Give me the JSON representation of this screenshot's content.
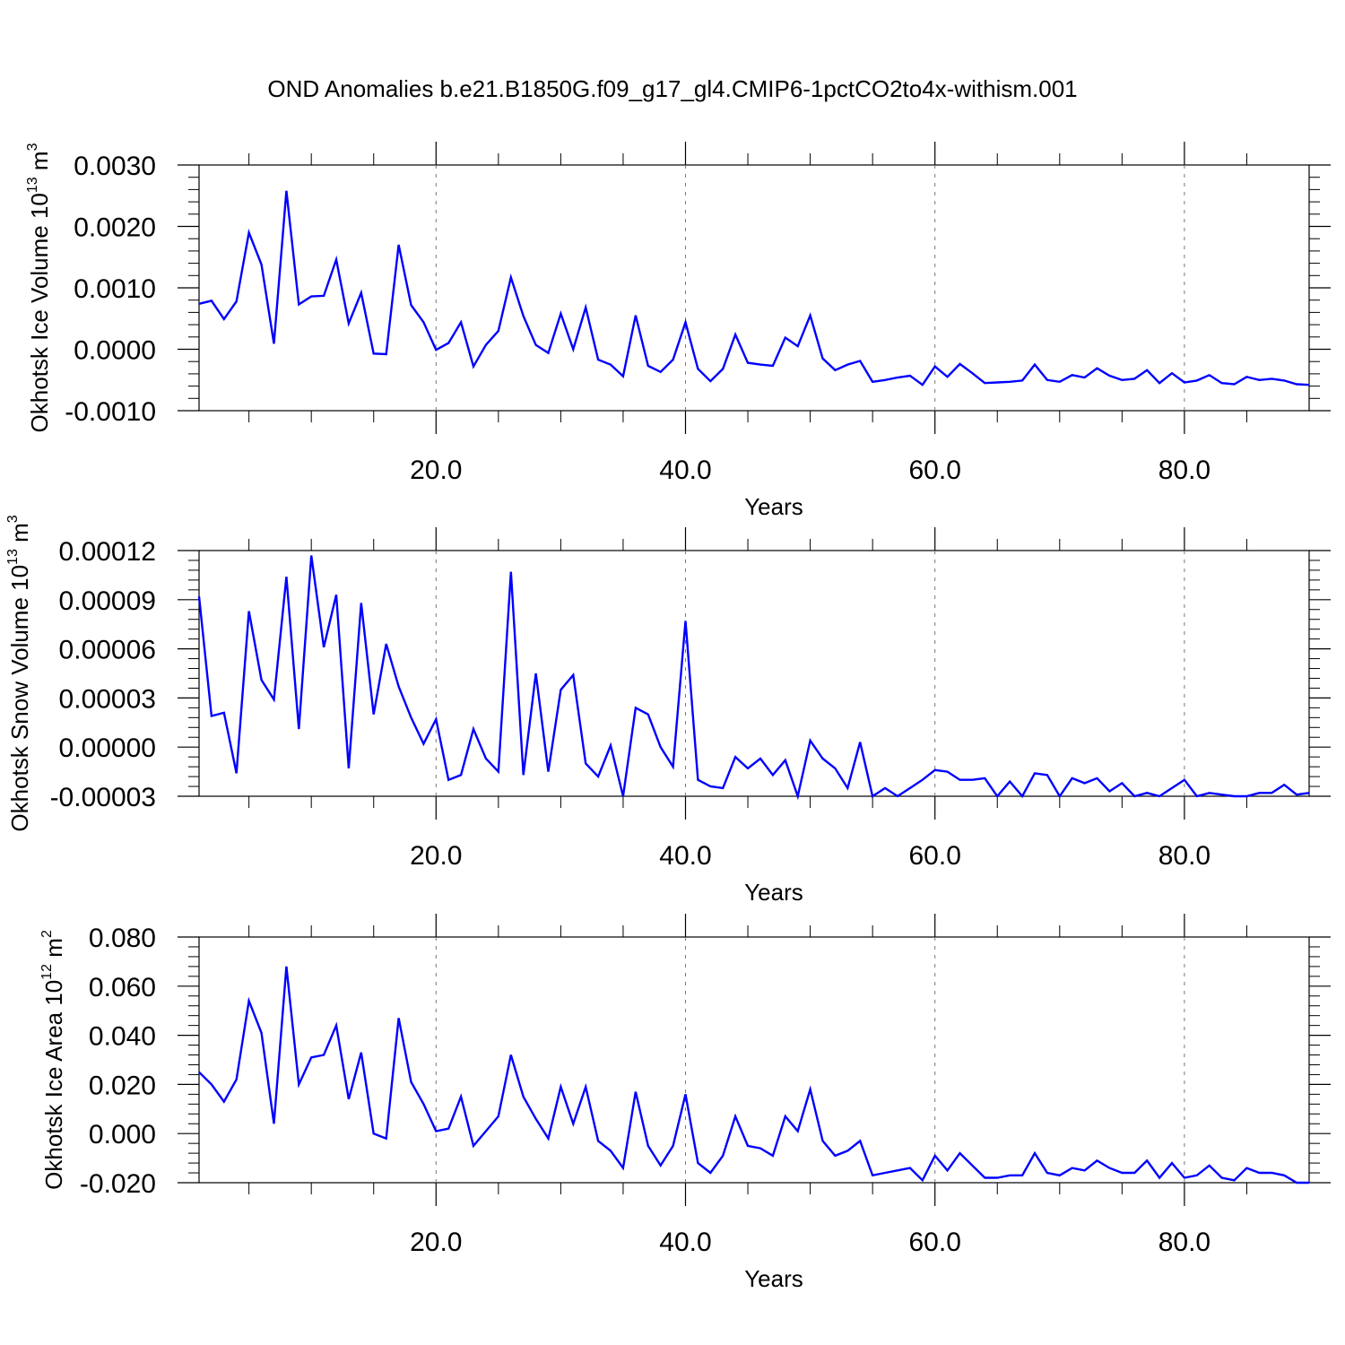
{
  "title": "OND Anomalies b.e21.B1850G.f09_g17_gl4.CMIP6-1pctCO2to4x-withism.001",
  "line_color": "#0000ff",
  "grid_color": "#777777",
  "chart_data": [
    {
      "type": "line",
      "xlabel": "Years",
      "ylabel": "Okhotsk Ice Volume 10",
      "ylabel_sup": "13",
      "ylabel_unit": "m",
      "ylabel_unit_sup": "3",
      "xlim": [
        1,
        90
      ],
      "ylim": [
        -0.001,
        0.003
      ],
      "xticks": [
        20,
        40,
        60,
        80
      ],
      "xtick_labels": [
        "20.0",
        "40.0",
        "60.0",
        "80.0"
      ],
      "yticks": [
        -0.001,
        0.0,
        0.001,
        0.002,
        0.003
      ],
      "ytick_labels": [
        "-0.0010",
        "0.0000",
        "0.0010",
        "0.0020",
        "0.0030"
      ],
      "grid": "vertical dashed at x ticks",
      "x": [
        1,
        2,
        3,
        4,
        5,
        6,
        7,
        8,
        9,
        10,
        11,
        12,
        13,
        14,
        15,
        16,
        17,
        18,
        19,
        20,
        21,
        22,
        23,
        24,
        25,
        26,
        27,
        28,
        29,
        30,
        31,
        32,
        33,
        34,
        35,
        36,
        37,
        38,
        39,
        40,
        41,
        42,
        43,
        44,
        45,
        46,
        47,
        48,
        49,
        50,
        51,
        52,
        53,
        54,
        55,
        56,
        57,
        58,
        59,
        60,
        61,
        62,
        63,
        64,
        65,
        66,
        67,
        68,
        69,
        70,
        71,
        72,
        73,
        74,
        75,
        76,
        77,
        78,
        79,
        80,
        81,
        82,
        83,
        84,
        85,
        86,
        87,
        88,
        89,
        90
      ],
      "y": [
        0.00074,
        0.00079,
        0.00049,
        0.00078,
        0.0019,
        0.00138,
        9e-05,
        0.00258,
        0.00073,
        0.00086,
        0.00087,
        0.00146,
        0.00042,
        0.00092,
        -7e-05,
        -8e-05,
        0.0017,
        0.00072,
        0.00044,
        -1e-05,
        0.0001,
        0.00044,
        -0.00028,
        7e-05,
        0.0003,
        0.00117,
        0.00054,
        7e-05,
        -6e-05,
        0.00058,
        0.0,
        0.00068,
        -0.00017,
        -0.00025,
        -0.00044,
        0.00055,
        -0.00027,
        -0.00037,
        -0.00017,
        0.00044,
        -0.00032,
        -0.00052,
        -0.00032,
        0.00024,
        -0.00022,
        -0.00025,
        -0.00027,
        0.00019,
        5e-05,
        0.00055,
        -0.00015,
        -0.00034,
        -0.00025,
        -0.00019,
        -0.00053,
        -0.0005,
        -0.00046,
        -0.00043,
        -0.00058,
        -0.00028,
        -0.00045,
        -0.00024,
        -0.00039,
        -0.00055,
        -0.00054,
        -0.00053,
        -0.00051,
        -0.00025,
        -0.0005,
        -0.00053,
        -0.00042,
        -0.00046,
        -0.00031,
        -0.00043,
        -0.0005,
        -0.00048,
        -0.00034,
        -0.00055,
        -0.00039,
        -0.00054,
        -0.00051,
        -0.00042,
        -0.00055,
        -0.00057,
        -0.00045,
        -0.0005,
        -0.00048,
        -0.00051,
        -0.00057,
        -0.00058
      ]
    },
    {
      "type": "line",
      "xlabel": "Years",
      "ylabel": "Okhotsk Snow Volume 10",
      "ylabel_sup": "13",
      "ylabel_unit": "m",
      "ylabel_unit_sup": "3",
      "xlim": [
        1,
        90
      ],
      "ylim": [
        -3e-05,
        0.00012
      ],
      "xticks": [
        20,
        40,
        60,
        80
      ],
      "xtick_labels": [
        "20.0",
        "40.0",
        "60.0",
        "80.0"
      ],
      "yticks": [
        -3e-05,
        0.0,
        3e-05,
        6e-05,
        9e-05,
        0.00012
      ],
      "ytick_labels": [
        "-0.00003",
        "0.00000",
        "0.00003",
        "0.00006",
        "0.00009",
        "0.00012"
      ],
      "grid": "vertical dashed at x ticks",
      "x": [
        1,
        2,
        3,
        4,
        5,
        6,
        7,
        8,
        9,
        10,
        11,
        12,
        13,
        14,
        15,
        16,
        17,
        18,
        19,
        20,
        21,
        22,
        23,
        24,
        25,
        26,
        27,
        28,
        29,
        30,
        31,
        32,
        33,
        34,
        35,
        36,
        37,
        38,
        39,
        40,
        41,
        42,
        43,
        44,
        45,
        46,
        47,
        48,
        49,
        50,
        51,
        52,
        53,
        54,
        55,
        56,
        57,
        58,
        59,
        60,
        61,
        62,
        63,
        64,
        65,
        66,
        67,
        68,
        69,
        70,
        71,
        72,
        73,
        74,
        75,
        76,
        77,
        78,
        79,
        80,
        81,
        82,
        83,
        84,
        85,
        86,
        87,
        88,
        89,
        90
      ],
      "y": [
        9.2e-05,
        1.9e-05,
        2.1e-05,
        -1.6e-05,
        8.3e-05,
        4.1e-05,
        2.9e-05,
        0.000104,
        1.1e-05,
        0.000117,
        6.1e-05,
        9.3e-05,
        -1.3e-05,
        8.8e-05,
        2e-05,
        6.3e-05,
        3.7e-05,
        1.8e-05,
        2e-06,
        1.7e-05,
        -2e-05,
        -1.7e-05,
        1.1e-05,
        -7e-06,
        -1.5e-05,
        0.000107,
        -1.7e-05,
        4.5e-05,
        -1.5e-05,
        3.5e-05,
        4.4e-05,
        -1e-05,
        -1.8e-05,
        1e-06,
        -3e-05,
        2.4e-05,
        2e-05,
        0.0,
        -1.2e-05,
        7.7e-05,
        -2e-05,
        -2.4e-05,
        -2.5e-05,
        -6e-06,
        -1.3e-05,
        -7e-06,
        -1.7e-05,
        -8e-06,
        -3e-05,
        4e-06,
        -7e-06,
        -1.3e-05,
        -2.5e-05,
        3e-06,
        -3e-05,
        -2.5e-05,
        -3e-05,
        -2.5e-05,
        -2e-05,
        -1.4e-05,
        -1.5e-05,
        -2e-05,
        -2e-05,
        -1.9e-05,
        -3e-05,
        -2.1e-05,
        -3e-05,
        -1.6e-05,
        -1.7e-05,
        -3e-05,
        -1.9e-05,
        -2.2e-05,
        -1.9e-05,
        -2.7e-05,
        -2.2e-05,
        -3e-05,
        -2.8e-05,
        -3e-05,
        -2.5e-05,
        -2e-05,
        -3e-05,
        -2.8e-05,
        -2.9e-05,
        -3e-05,
        -3e-05,
        -2.8e-05,
        -2.8e-05,
        -2.3e-05,
        -2.9e-05,
        -2.8e-05
      ]
    },
    {
      "type": "line",
      "xlabel": "Years",
      "ylabel": "Okhotsk Ice Area 10",
      "ylabel_sup": "12",
      "ylabel_unit": "m",
      "ylabel_unit_sup": "2",
      "xlim": [
        1,
        90
      ],
      "ylim": [
        -0.02,
        0.08
      ],
      "xticks": [
        20,
        40,
        60,
        80
      ],
      "xtick_labels": [
        "20.0",
        "40.0",
        "60.0",
        "80.0"
      ],
      "yticks": [
        -0.02,
        0.0,
        0.02,
        0.04,
        0.06,
        0.08
      ],
      "ytick_labels": [
        "-0.020",
        "0.000",
        "0.020",
        "0.040",
        "0.060",
        "0.080"
      ],
      "grid": "vertical dashed at x ticks",
      "x": [
        1,
        2,
        3,
        4,
        5,
        6,
        7,
        8,
        9,
        10,
        11,
        12,
        13,
        14,
        15,
        16,
        17,
        18,
        19,
        20,
        21,
        22,
        23,
        24,
        25,
        26,
        27,
        28,
        29,
        30,
        31,
        32,
        33,
        34,
        35,
        36,
        37,
        38,
        39,
        40,
        41,
        42,
        43,
        44,
        45,
        46,
        47,
        48,
        49,
        50,
        51,
        52,
        53,
        54,
        55,
        56,
        57,
        58,
        59,
        60,
        61,
        62,
        63,
        64,
        65,
        66,
        67,
        68,
        69,
        70,
        71,
        72,
        73,
        74,
        75,
        76,
        77,
        78,
        79,
        80,
        81,
        82,
        83,
        84,
        85,
        86,
        87,
        88,
        89,
        90
      ],
      "y": [
        0.025,
        0.02,
        0.013,
        0.022,
        0.054,
        0.041,
        0.004,
        0.068,
        0.02,
        0.031,
        0.032,
        0.044,
        0.014,
        0.033,
        0.0,
        -0.002,
        0.047,
        0.021,
        0.012,
        0.001,
        0.002,
        0.015,
        -0.005,
        0.001,
        0.007,
        0.032,
        0.015,
        0.006,
        -0.002,
        0.019,
        0.004,
        0.019,
        -0.003,
        -0.007,
        -0.014,
        0.017,
        -0.005,
        -0.013,
        -0.005,
        0.016,
        -0.012,
        -0.016,
        -0.009,
        0.007,
        -0.005,
        -0.006,
        -0.009,
        0.007,
        0.001,
        0.018,
        -0.003,
        -0.009,
        -0.007,
        -0.003,
        -0.017,
        -0.016,
        -0.015,
        -0.014,
        -0.019,
        -0.009,
        -0.015,
        -0.008,
        -0.013,
        -0.018,
        -0.018,
        -0.017,
        -0.017,
        -0.008,
        -0.016,
        -0.017,
        -0.014,
        -0.015,
        -0.011,
        -0.014,
        -0.016,
        -0.016,
        -0.011,
        -0.018,
        -0.012,
        -0.018,
        -0.017,
        -0.013,
        -0.018,
        -0.019,
        -0.014,
        -0.016,
        -0.016,
        -0.017,
        -0.02,
        -0.02
      ]
    }
  ]
}
